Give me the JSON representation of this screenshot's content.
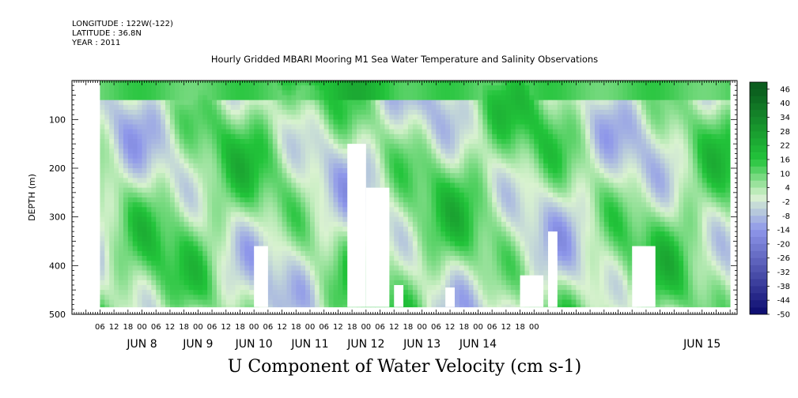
{
  "header": {
    "longitude": "LONGITUDE : 122W(-122)",
    "latitude": "LATITUDE : 36.8N",
    "year": "YEAR : 2011"
  },
  "chart_data": {
    "type": "heatmap",
    "title": "Hourly Gridded MBARI Mooring M1 Sea Water Temperature and Salinity Observations",
    "xlabel": "U Component of Water Velocity (cm s-1)",
    "ylabel": "DEPTH (m)",
    "x_axis": {
      "hour_ticks": [
        "06",
        "12",
        "18",
        "00",
        "06",
        "12",
        "18",
        "00",
        "06",
        "12",
        "18",
        "00",
        "06",
        "12",
        "18",
        "00",
        "06",
        "12",
        "18",
        "00",
        "06",
        "12",
        "18",
        "00",
        "06",
        "12",
        "18",
        "00",
        "06",
        "12",
        "18",
        "00"
      ],
      "date_labels": [
        "JUN 8",
        "JUN 9",
        "JUN 10",
        "JUN 11",
        "JUN 12",
        "JUN 13",
        "JUN 14",
        "JUN 15"
      ],
      "range_hours_since_jun8_00": [
        -18,
        267
      ]
    },
    "y_axis": {
      "range": [
        500,
        20
      ],
      "inverted": true,
      "ticks": [
        100,
        200,
        300,
        400,
        500
      ]
    },
    "colorbar": {
      "labels": [
        "46",
        "40",
        "34",
        "28",
        "22",
        "16",
        "10",
        "4",
        "-2",
        "-8",
        "-14",
        "-20",
        "-26",
        "-32",
        "-38",
        "-44",
        "-50"
      ],
      "range": [
        -50,
        49
      ]
    },
    "data_extent": {
      "time_start_hour": -6,
      "time_end_hour": 264,
      "depth_top": 20,
      "depth_bottom": 485
    },
    "missing_regions": [
      {
        "t0": 60,
        "t1": 66,
        "d0": 360,
        "d1": 485
      },
      {
        "t0": 100,
        "t1": 108,
        "d0": 150,
        "d1": 485
      },
      {
        "t0": 108,
        "t1": 118,
        "d0": 240,
        "d1": 485
      },
      {
        "t0": 120,
        "t1": 124,
        "d0": 440,
        "d1": 485
      },
      {
        "t0": 142,
        "t1": 146,
        "d0": 445,
        "d1": 485
      },
      {
        "t0": 174,
        "t1": 184,
        "d0": 420,
        "d1": 485
      },
      {
        "t0": 186,
        "t1": 190,
        "d0": 330,
        "d1": 485
      },
      {
        "t0": 222,
        "t1": 232,
        "d0": 360,
        "d1": 485
      }
    ],
    "colors": {
      "positive_max": "#0b5d1e",
      "positive_mid": "#22c43a",
      "near_zero": "#d9f2d0",
      "negative_mid": "#8e97ea",
      "negative_max": "#0a0a6e"
    }
  }
}
